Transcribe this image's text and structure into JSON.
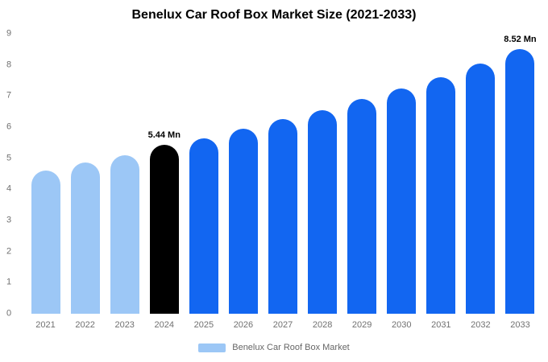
{
  "chart_data": {
    "type": "bar",
    "title": "Benelux Car Roof Box Market Size (2021-2033)",
    "xlabel": "",
    "ylabel": "",
    "categories": [
      "2021",
      "2022",
      "2023",
      "2024",
      "2025",
      "2026",
      "2027",
      "2028",
      "2029",
      "2030",
      "2031",
      "2032",
      "2033"
    ],
    "values": [
      4.6,
      4.85,
      5.1,
      5.44,
      5.65,
      5.95,
      6.25,
      6.55,
      6.9,
      7.25,
      7.6,
      8.05,
      8.52
    ],
    "bar_colors": [
      "#9cc7f6",
      "#9cc7f6",
      "#9cc7f6",
      "#000000",
      "#1266f1",
      "#1266f1",
      "#1266f1",
      "#1266f1",
      "#1266f1",
      "#1266f1",
      "#1266f1",
      "#1266f1",
      "#1266f1"
    ],
    "bar_labels": {
      "2024": "5.44 Mn",
      "2033": "8.52 Mn"
    },
    "ylim": [
      0,
      9
    ],
    "yticks": [
      0,
      1,
      2,
      3,
      4,
      5,
      6,
      7,
      8,
      9
    ],
    "grid": false,
    "legend_position": "bottom",
    "legend": {
      "label": "Benelux Car Roof Box Market",
      "swatch_color": "#9cc7f6"
    },
    "colors": {
      "historical_bars": "#9cc7f6",
      "current_year_bar": "#000000",
      "forecast_bars": "#1266f1",
      "title_text": "#000000",
      "axis_text": "#707070"
    }
  }
}
